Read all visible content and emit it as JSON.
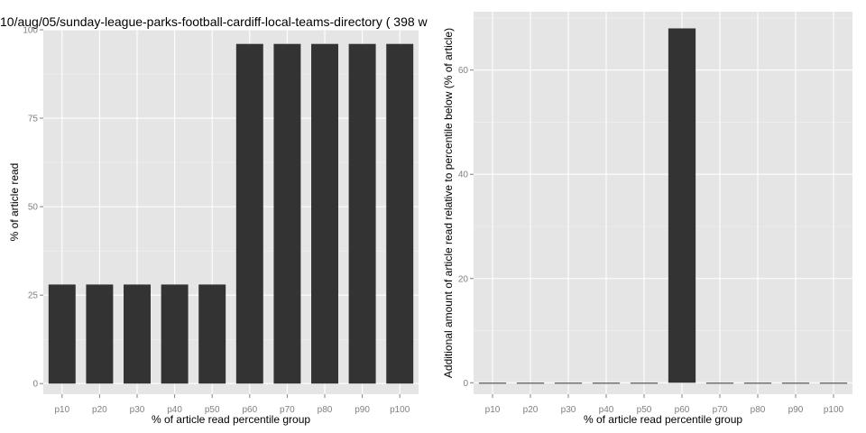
{
  "chart_data": [
    {
      "type": "bar",
      "title": "10/aug/05/sunday-league-parks-football-cardiff-local-teams-directory ( 398 w",
      "xlabel": "% of article read percentile group",
      "ylabel": "% of article read",
      "categories": [
        "p10",
        "p20",
        "p30",
        "p40",
        "p50",
        "p60",
        "p70",
        "p80",
        "p90",
        "p100"
      ],
      "values": [
        28,
        28,
        28,
        28,
        28,
        96,
        96,
        96,
        96,
        96
      ],
      "ylim": [
        -3,
        100
      ],
      "yticks": [
        0,
        25,
        50,
        75,
        100
      ],
      "bar_color": "#333333",
      "panel_color": "#e5e5e5",
      "grid": true
    },
    {
      "type": "bar",
      "title": "",
      "xlabel": "% of article read percentile group",
      "ylabel": "Additional amount of article read relative to percentile below (% of article)",
      "categories": [
        "p10",
        "p20",
        "p30",
        "p40",
        "p50",
        "p60",
        "p70",
        "p80",
        "p90",
        "p100"
      ],
      "values": [
        0,
        0,
        0,
        0,
        0,
        68,
        0,
        0,
        0,
        0
      ],
      "ylim": [
        -2.2,
        71.2
      ],
      "yticks": [
        0,
        20,
        40,
        60
      ],
      "bar_color": "#333333",
      "panel_color": "#e5e5e5",
      "grid": true
    }
  ]
}
